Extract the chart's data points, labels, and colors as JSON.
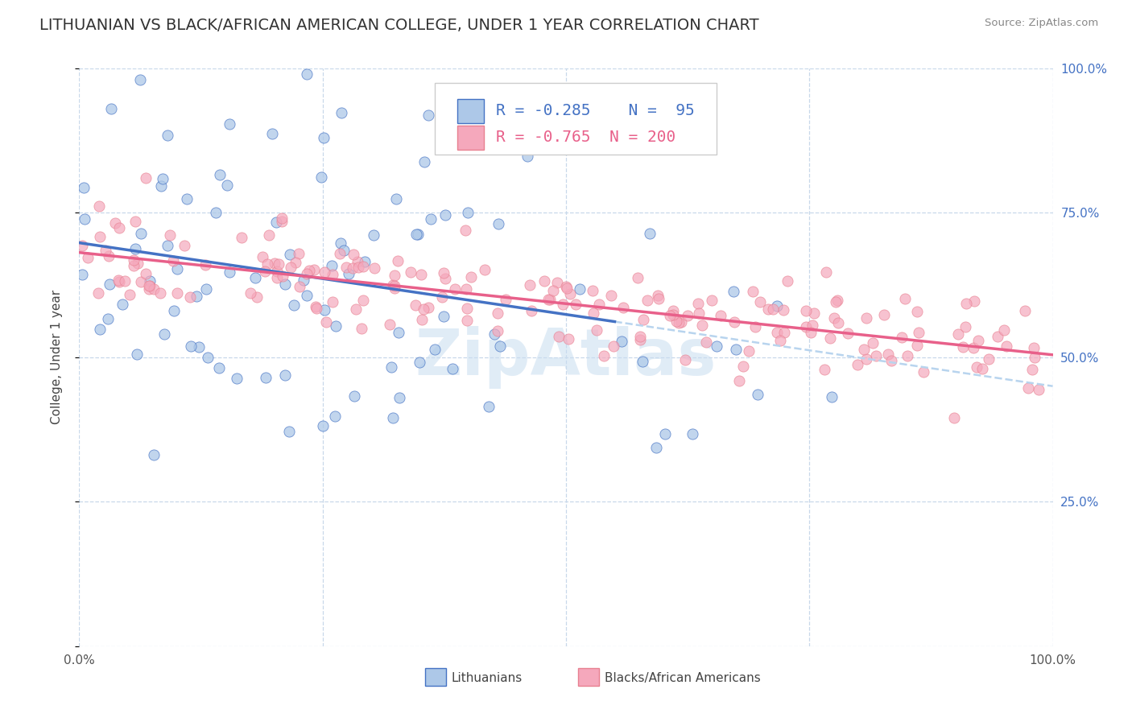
{
  "title": "LITHUANIAN VS BLACK/AFRICAN AMERICAN COLLEGE, UNDER 1 YEAR CORRELATION CHART",
  "source": "Source: ZipAtlas.com",
  "ylabel": "College, Under 1 year",
  "watermark": "ZipAtlas",
  "legend_labels": [
    "Lithuanians",
    "Blacks/African Americans"
  ],
  "R_lith": -0.285,
  "N_lith": 95,
  "R_black": -0.765,
  "N_black": 200,
  "scatter_color_lith": "#adc8e8",
  "scatter_color_black": "#f5a8bc",
  "line_color_lith": "#4472c4",
  "line_color_black": "#e8608a",
  "line_color_dashed": "#b8d4ee",
  "background_color": "#ffffff",
  "xlim": [
    0.0,
    1.0
  ],
  "ylim": [
    0.0,
    1.0
  ],
  "title_fontsize": 14,
  "axis_label_fontsize": 11,
  "tick_fontsize": 11,
  "legend_fontsize": 14,
  "seed_lith": 77,
  "seed_black": 55
}
